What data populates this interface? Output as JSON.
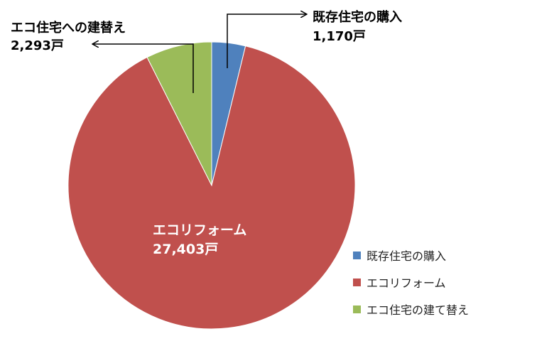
{
  "chart_data": {
    "type": "pie",
    "categories": [
      "既存住宅の購入",
      "エコリフォーム",
      "エコ住宅の建て替え"
    ],
    "values": [
      1170,
      27403,
      2293
    ],
    "units": "戸",
    "colors": [
      "#4f81bd",
      "#c0504d",
      "#9bbb59"
    ],
    "data_labels": [
      {
        "name": "既存住宅の購入",
        "value": "1,170戸"
      },
      {
        "name": "エコリフォーム",
        "value": "27,403戸"
      },
      {
        "name": "エコ住宅への建替え",
        "value": "2,293戸"
      }
    ],
    "legend": {
      "placement": "bottom-right",
      "entries": [
        "既存住宅の購入",
        "エコリフォーム",
        "エコ住宅の建て替え"
      ]
    }
  }
}
